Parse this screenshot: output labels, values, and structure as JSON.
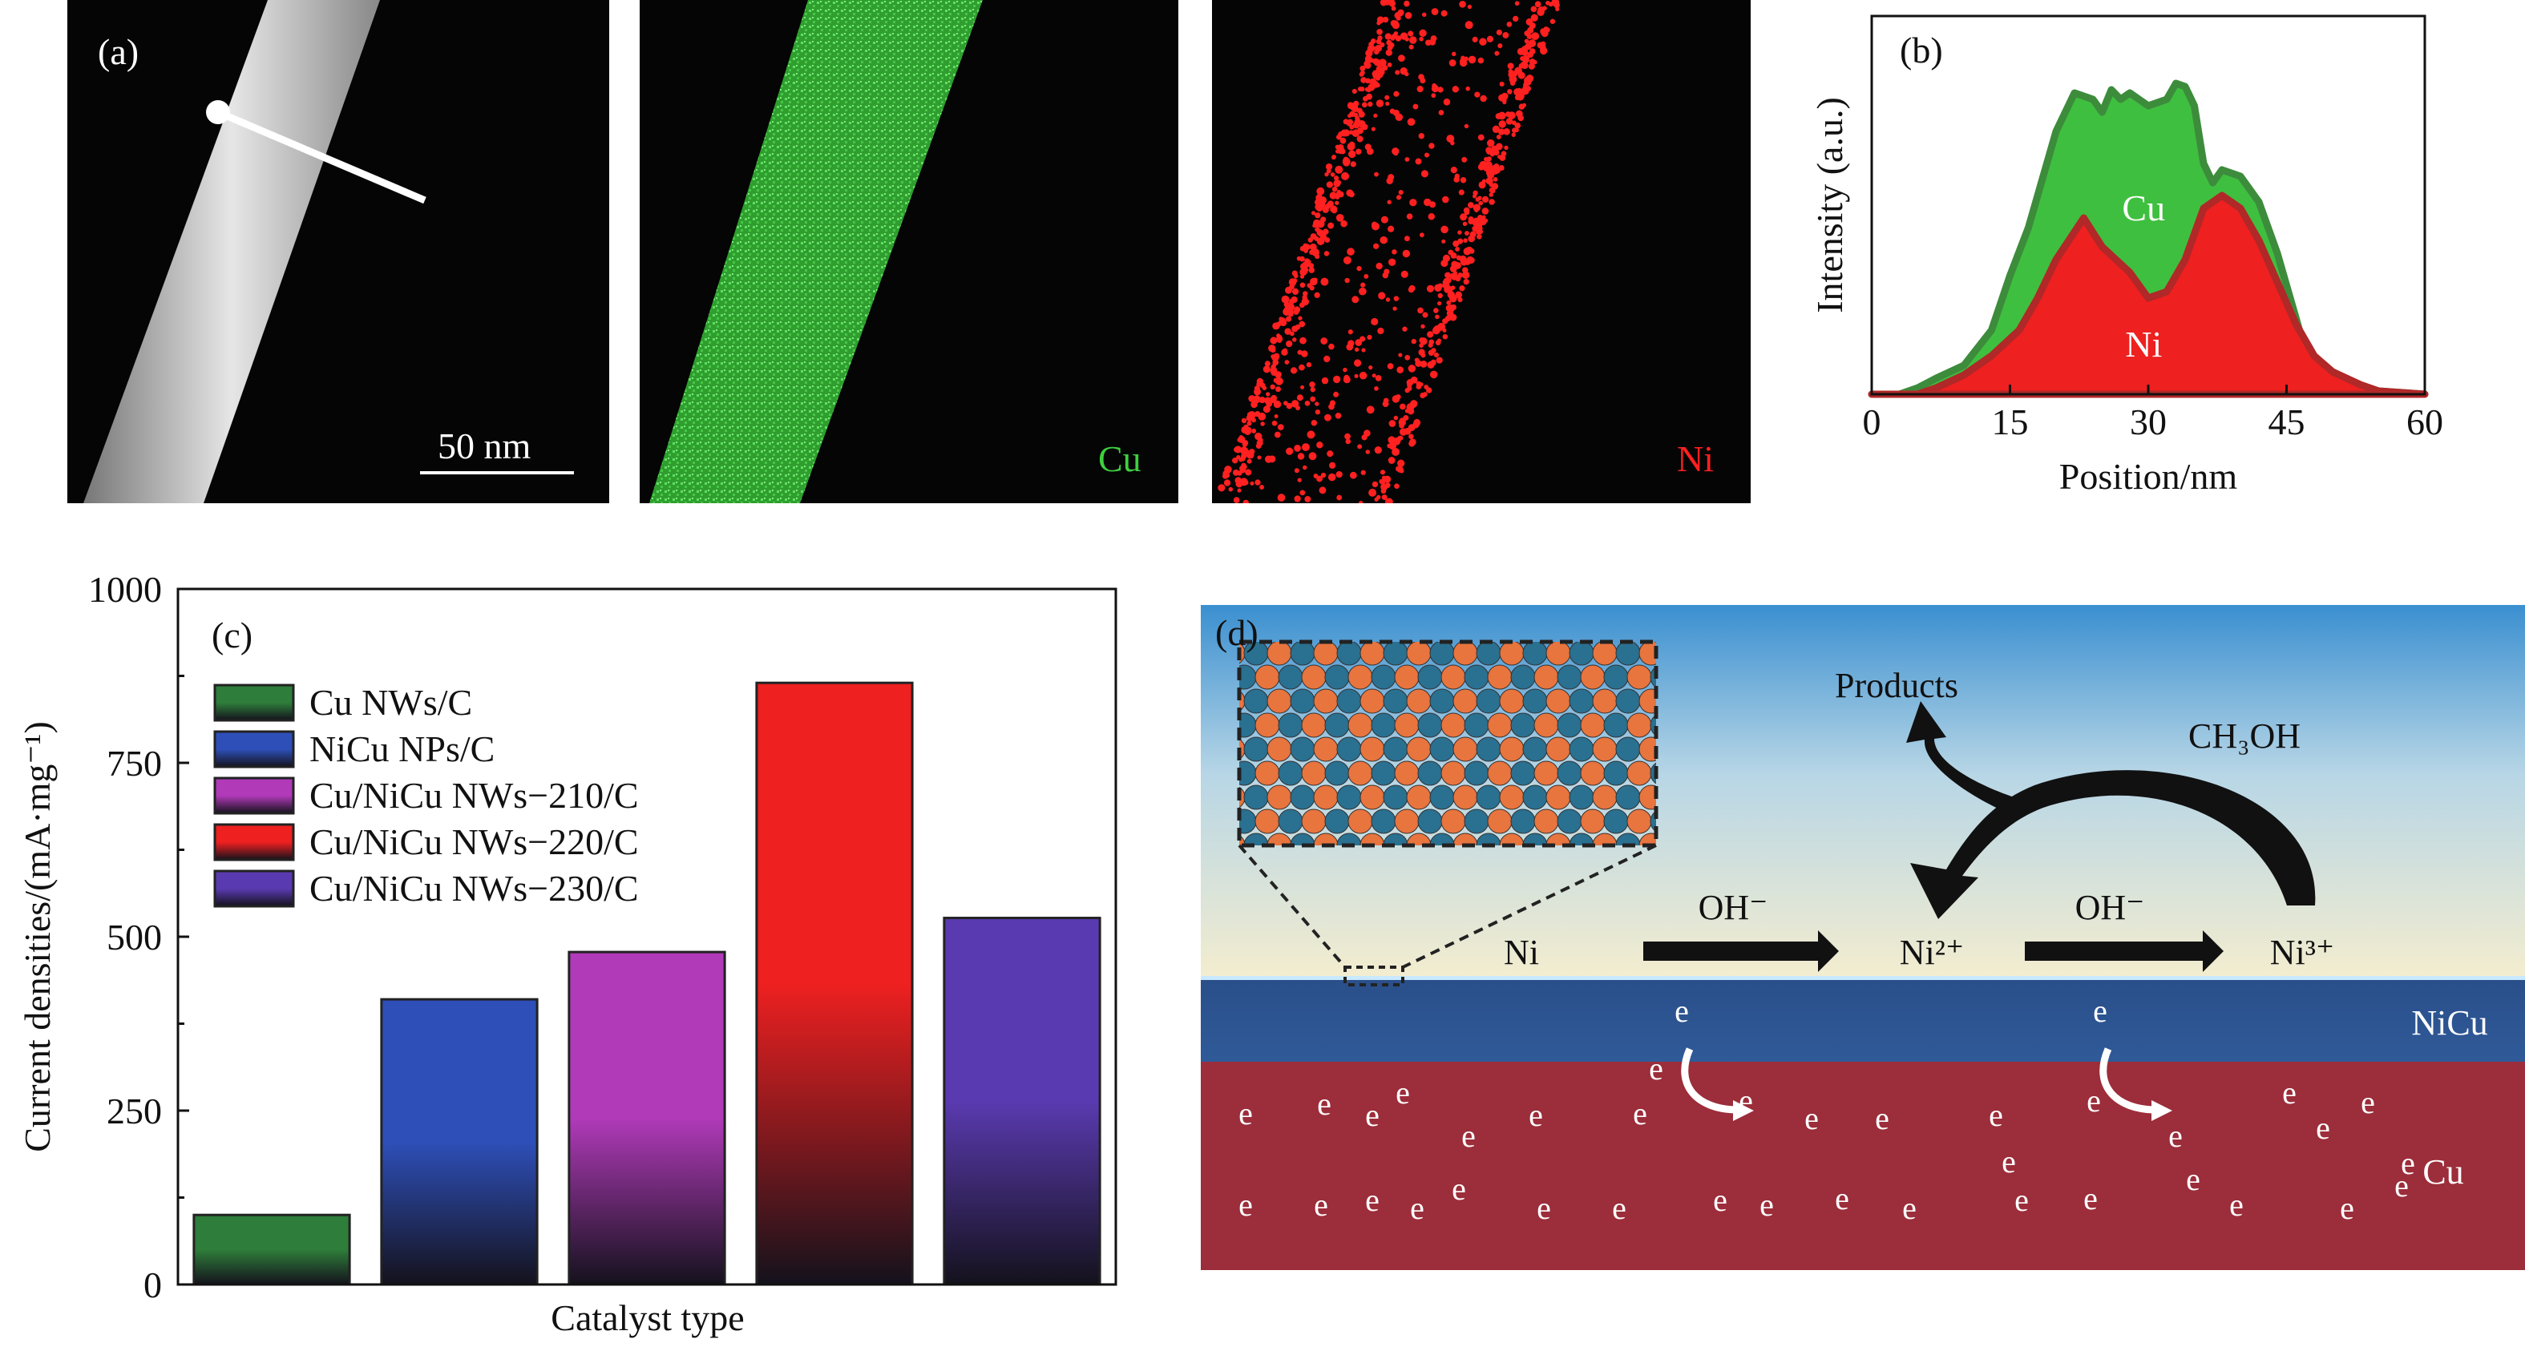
{
  "panel_a": {
    "label": "(a)",
    "scale_bar": "50 nm",
    "cu_map_label": "Cu",
    "ni_map_label": "Ni",
    "colors": {
      "cu_map": "#3fcf3f",
      "ni_map": "#ff2020",
      "stem": "#d8d8d8"
    }
  },
  "chart_data": [
    {
      "type": "area",
      "panel": "(b)",
      "xlabel": "Position/nm",
      "ylabel": "Intensity (a.u.)",
      "xlim": [
        0,
        60
      ],
      "xticks": [
        0,
        15,
        30,
        45,
        60
      ],
      "yticks_shown": false,
      "series": [
        {
          "name": "Cu",
          "color": "#3fbf3f",
          "edge": "#3c8c3c",
          "x": [
            0,
            3,
            5,
            7,
            10,
            13,
            15,
            17,
            20,
            22,
            24,
            25,
            26,
            27,
            28,
            30,
            32,
            33,
            34,
            35,
            36,
            37,
            38,
            40,
            42,
            44,
            45,
            47,
            50,
            55,
            60
          ],
          "y": [
            0,
            0,
            0.02,
            0.05,
            0.09,
            0.2,
            0.37,
            0.52,
            0.82,
            0.94,
            0.92,
            0.88,
            0.95,
            0.92,
            0.94,
            0.9,
            0.92,
            0.97,
            0.96,
            0.9,
            0.72,
            0.66,
            0.7,
            0.68,
            0.6,
            0.44,
            0.34,
            0.14,
            0.04,
            0.01,
            0
          ]
        },
        {
          "name": "Ni",
          "color": "#ee2020",
          "edge": "#b02828",
          "x": [
            0,
            3,
            5,
            7,
            10,
            13,
            16,
            18,
            20,
            23,
            25,
            28,
            30,
            32,
            34,
            36,
            38,
            40,
            42,
            44,
            46,
            48,
            50,
            53,
            55,
            60
          ],
          "y": [
            0,
            0,
            0,
            0.02,
            0.06,
            0.12,
            0.2,
            0.3,
            0.42,
            0.55,
            0.46,
            0.38,
            0.3,
            0.32,
            0.42,
            0.58,
            0.62,
            0.58,
            0.48,
            0.35,
            0.22,
            0.12,
            0.07,
            0.03,
            0.01,
            0
          ]
        }
      ]
    },
    {
      "type": "bar",
      "panel": "(c)",
      "xlabel": "Catalyst type",
      "ylabel": "Current densities/(mA·mg⁻¹)",
      "ylim": [
        0,
        1000
      ],
      "yticks": [
        0,
        250,
        500,
        750,
        1000
      ],
      "legend_position": "top-left",
      "categories": [
        "Cu NWs/C",
        "NiCu NPs/C",
        "Cu/NiCu NWs−210/C",
        "Cu/NiCu NWs−220/C",
        "Cu/NiCu NWs−230/C"
      ],
      "values": [
        100,
        410,
        478,
        865,
        527
      ],
      "colors": [
        "#2e7d3a",
        "#2e4fb8",
        "#b03ab8",
        "#ee2020",
        "#5a3ab0"
      ]
    }
  ],
  "panel_d": {
    "label": "(d)",
    "products": "Products",
    "ch3oh": "CH₃OH",
    "oh1": "OH⁻",
    "oh2": "OH⁻",
    "ni": "Ni",
    "ni2": "Ni²⁺",
    "ni3": "Ni³⁺",
    "nicu": "NiCu",
    "cu": "Cu",
    "electron": "e",
    "colors": {
      "sky_top": "#3a8fd0",
      "sky_bottom": "#f2ecd0",
      "nicu_layer": "#2d5590",
      "cu_layer": "#9c2d3a",
      "atom_a": "#e8743e",
      "atom_b": "#2a7090"
    }
  }
}
